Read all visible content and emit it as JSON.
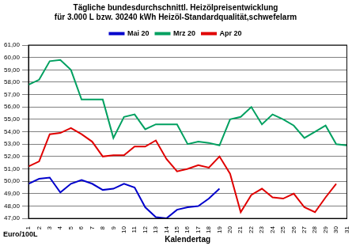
{
  "chart_data": {
    "type": "line",
    "title": [
      "Tägliche bundesdurchschnittl. Heizölpreisentwicklung",
      "für 3.000 L bzw. 30240 kWh Heizöl-Standardqualität,schwefelarm"
    ],
    "xlabel": "Kalendertag",
    "ylabel": "Euro/100L",
    "categories": [
      "1",
      "2",
      "3",
      "4",
      "5",
      "6",
      "7",
      "8",
      "9",
      "10",
      "11",
      "12",
      "13",
      "14",
      "15",
      "16",
      "17",
      "18",
      "19",
      "20",
      "21",
      "22",
      "23",
      "24",
      "25",
      "26",
      "27",
      "28",
      "29",
      "30",
      "31"
    ],
    "series": [
      {
        "name": "Mai 20",
        "color": "#0000cc",
        "values": [
          49.8,
          50.2,
          50.3,
          49.1,
          49.8,
          50.1,
          49.8,
          49.3,
          49.4,
          49.8,
          49.5,
          47.9,
          47.1,
          47.0,
          47.7,
          47.9,
          48.0,
          48.6,
          49.4,
          null,
          null,
          null,
          null,
          null,
          null,
          null,
          null,
          null,
          null,
          null,
          null
        ]
      },
      {
        "name": "Mrz 20",
        "color": "#00a060",
        "values": [
          57.8,
          58.2,
          59.7,
          59.8,
          59.0,
          56.6,
          56.6,
          56.6,
          53.5,
          55.2,
          55.4,
          54.2,
          54.6,
          54.6,
          54.6,
          53.0,
          53.2,
          53.1,
          52.9,
          55.0,
          55.2,
          56.0,
          54.6,
          55.4,
          55.0,
          54.5,
          53.5,
          54.0,
          54.5,
          53.0,
          52.9
        ]
      },
      {
        "name": "Apr 20",
        "color": "#e00000",
        "values": [
          51.2,
          51.6,
          53.8,
          53.9,
          54.3,
          53.8,
          53.2,
          52.0,
          52.1,
          52.1,
          52.8,
          52.8,
          53.3,
          51.8,
          50.8,
          51.0,
          51.3,
          51.1,
          52.0,
          50.6,
          47.5,
          48.9,
          49.4,
          48.7,
          48.6,
          49.0,
          47.9,
          47.5,
          48.7,
          49.8,
          null
        ]
      }
    ],
    "ylim": [
      47,
      61
    ],
    "yticks": [
      {
        "value": 47,
        "label": "47,00"
      },
      {
        "value": 48,
        "label": "48,00"
      },
      {
        "value": 49,
        "label": "49,00"
      },
      {
        "value": 50,
        "label": "50,00"
      },
      {
        "value": 51,
        "label": "51,00"
      },
      {
        "value": 52,
        "label": "52,00"
      },
      {
        "value": 53,
        "label": "53,00"
      },
      {
        "value": 54,
        "label": "54,00"
      },
      {
        "value": 55,
        "label": "55,00"
      },
      {
        "value": 56,
        "label": "56,00"
      },
      {
        "value": 57,
        "label": "57,00"
      },
      {
        "value": 58,
        "label": "58,00"
      },
      {
        "value": 59,
        "label": "59,00"
      },
      {
        "value": 60,
        "label": "60,00"
      },
      {
        "value": 61,
        "label": "61,00"
      }
    ],
    "grid": true,
    "legend": "top"
  }
}
